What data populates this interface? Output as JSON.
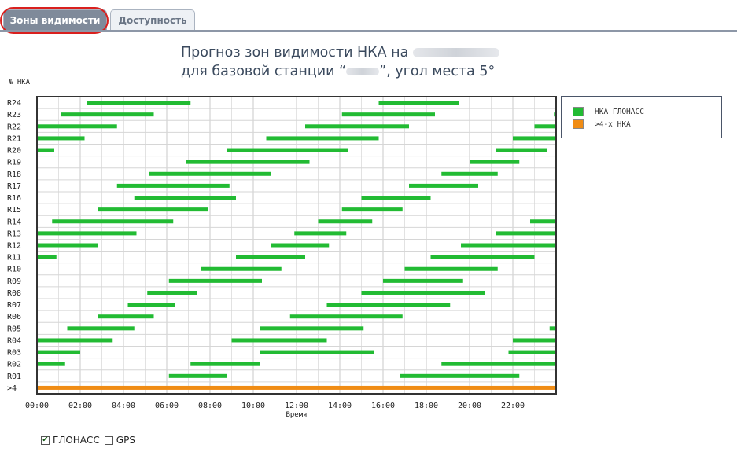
{
  "tabs": [
    {
      "label": "Зоны видимости",
      "active": true
    },
    {
      "label": "Доступность",
      "active": false
    }
  ],
  "title": {
    "line1": "Прогноз зон видимости НКА на",
    "line2_prefix": "для базовой станции “",
    "line2_suffix": "”, угол места 5°"
  },
  "legend": [
    {
      "label": "НКА ГЛОНАСС",
      "color": "#22bb33"
    },
    {
      "label": ">4-х НКА",
      "color": "#f08c14"
    }
  ],
  "filters": [
    {
      "label": "ГЛОНАСС",
      "checked": true
    },
    {
      "label": "GPS",
      "checked": false
    }
  ],
  "chart_data": {
    "type": "bar",
    "subtype": "gantt",
    "ylabel": "№ НКА",
    "xlabel": "Время",
    "xlim": [
      0,
      24
    ],
    "xticks": [
      "00:00",
      "02:00",
      "04:00",
      "06:00",
      "08:00",
      "10:00",
      "12:00",
      "14:00",
      "16:00",
      "18:00",
      "20:00",
      "22:00"
    ],
    "grid": true,
    "legend_position": "right",
    "colors": {
      "glonass": "#22bb33",
      "more4": "#f08c14"
    },
    "rows": [
      {
        "name": ">4",
        "series": "more4",
        "intervals": [
          [
            0,
            24
          ]
        ]
      },
      {
        "name": "R01",
        "series": "glonass",
        "intervals": [
          [
            6.1,
            8.8
          ],
          [
            16.8,
            22.3
          ]
        ]
      },
      {
        "name": "R02",
        "series": "glonass",
        "intervals": [
          [
            0,
            1.3
          ],
          [
            7.1,
            10.3
          ],
          [
            18.7,
            24
          ]
        ]
      },
      {
        "name": "R03",
        "series": "glonass",
        "intervals": [
          [
            0,
            2.0
          ],
          [
            10.3,
            15.6
          ],
          [
            21.8,
            24
          ]
        ]
      },
      {
        "name": "R04",
        "series": "glonass",
        "intervals": [
          [
            0,
            3.5
          ],
          [
            9.0,
            13.4
          ],
          [
            22.0,
            24
          ]
        ]
      },
      {
        "name": "R05",
        "series": "glonass",
        "intervals": [
          [
            1.4,
            4.5
          ],
          [
            10.3,
            15.1
          ],
          [
            23.7,
            24
          ]
        ]
      },
      {
        "name": "R06",
        "series": "glonass",
        "intervals": [
          [
            2.8,
            5.4
          ],
          [
            11.7,
            16.9
          ]
        ]
      },
      {
        "name": "R07",
        "series": "glonass",
        "intervals": [
          [
            4.2,
            6.4
          ],
          [
            13.4,
            19.1
          ]
        ]
      },
      {
        "name": "R08",
        "series": "glonass",
        "intervals": [
          [
            5.1,
            7.4
          ],
          [
            15.0,
            20.7
          ]
        ]
      },
      {
        "name": "R09",
        "series": "glonass",
        "intervals": [
          [
            6.1,
            10.4
          ],
          [
            16.0,
            19.7
          ]
        ]
      },
      {
        "name": "R10",
        "series": "glonass",
        "intervals": [
          [
            7.6,
            11.3
          ],
          [
            17.0,
            21.3
          ]
        ]
      },
      {
        "name": "R11",
        "series": "glonass",
        "intervals": [
          [
            0,
            0.9
          ],
          [
            9.2,
            12.4
          ],
          [
            18.2,
            23.0
          ]
        ]
      },
      {
        "name": "R12",
        "series": "glonass",
        "intervals": [
          [
            0,
            2.8
          ],
          [
            10.8,
            13.5
          ],
          [
            19.6,
            24
          ]
        ]
      },
      {
        "name": "R13",
        "series": "glonass",
        "intervals": [
          [
            0,
            4.6
          ],
          [
            11.9,
            14.3
          ],
          [
            21.2,
            24
          ]
        ]
      },
      {
        "name": "R14",
        "series": "glonass",
        "intervals": [
          [
            0.7,
            6.3
          ],
          [
            13.0,
            15.5
          ],
          [
            22.8,
            24
          ]
        ]
      },
      {
        "name": "R15",
        "series": "glonass",
        "intervals": [
          [
            2.8,
            7.9
          ],
          [
            14.1,
            16.9
          ]
        ]
      },
      {
        "name": "R16",
        "series": "glonass",
        "intervals": [
          [
            4.5,
            9.2
          ],
          [
            15.0,
            18.2
          ]
        ]
      },
      {
        "name": "R17",
        "series": "glonass",
        "intervals": [
          [
            3.7,
            8.9
          ],
          [
            17.2,
            20.4
          ]
        ]
      },
      {
        "name": "R18",
        "series": "glonass",
        "intervals": [
          [
            5.2,
            10.8
          ],
          [
            18.7,
            21.3
          ]
        ]
      },
      {
        "name": "R19",
        "series": "glonass",
        "intervals": [
          [
            6.9,
            12.6
          ],
          [
            20.0,
            22.3
          ]
        ]
      },
      {
        "name": "R20",
        "series": "glonass",
        "intervals": [
          [
            0,
            0.8
          ],
          [
            8.8,
            14.4
          ],
          [
            21.2,
            23.6
          ]
        ]
      },
      {
        "name": "R21",
        "series": "glonass",
        "intervals": [
          [
            0,
            2.2
          ],
          [
            10.6,
            15.8
          ],
          [
            22.0,
            24
          ]
        ]
      },
      {
        "name": "R22",
        "series": "glonass",
        "intervals": [
          [
            0,
            3.7
          ],
          [
            12.4,
            17.2
          ],
          [
            23.0,
            24
          ]
        ]
      },
      {
        "name": "R23",
        "series": "glonass",
        "intervals": [
          [
            1.1,
            5.4
          ],
          [
            14.1,
            18.4
          ],
          [
            23.9,
            24
          ]
        ]
      },
      {
        "name": "R24",
        "series": "glonass",
        "intervals": [
          [
            2.3,
            7.1
          ],
          [
            15.8,
            19.5
          ]
        ]
      }
    ]
  }
}
